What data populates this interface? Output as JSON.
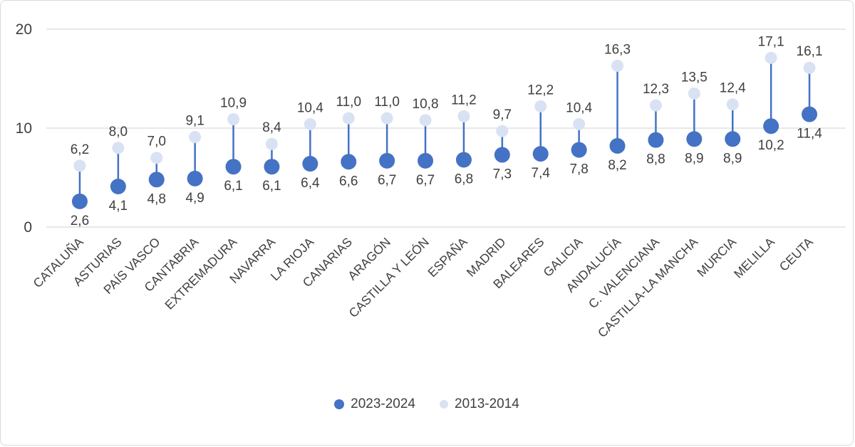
{
  "chart_data": {
    "type": "dumbbell",
    "title": "",
    "categories": [
      "CATALUÑA",
      "ASTURIAS",
      "PAÍS VASCO",
      "CANTABRIA",
      "EXTREMADURA",
      "NAVARRA",
      "LA RIOJA",
      "CANARIAS",
      "ARAGÓN",
      "CASTILLA Y LEÓN",
      "ESPAÑA",
      "MADRID",
      "BALEARES",
      "GALICIA",
      "ANDALUCÍA",
      "C. VALENCIANA",
      "CASTILLA-LA MANCHA",
      "MURCIA",
      "MELILLA",
      "CEUTA"
    ],
    "series": [
      {
        "name": "2023-2024",
        "color": "#4472C4",
        "values": [
          2.6,
          4.1,
          4.8,
          4.9,
          6.1,
          6.1,
          6.4,
          6.6,
          6.7,
          6.7,
          6.8,
          7.3,
          7.4,
          7.8,
          8.2,
          8.8,
          8.9,
          8.9,
          10.2,
          11.4
        ]
      },
      {
        "name": "2013-2014",
        "color": "#D9E2F3",
        "values": [
          6.2,
          8.0,
          7.0,
          9.1,
          10.9,
          8.4,
          10.4,
          11.0,
          11.0,
          10.8,
          11.2,
          9.7,
          12.2,
          10.4,
          16.3,
          12.3,
          13.5,
          12.4,
          17.1,
          16.1
        ]
      }
    ],
    "ylim": [
      0,
      20
    ],
    "yticks": [
      0,
      10,
      20
    ],
    "grid": "horizontal",
    "legend_position": "bottom",
    "label_format": "comma-decimal",
    "data_labels": "both-series"
  },
  "colors": {
    "text": "#404040",
    "gridline": "#d9d9d9",
    "border": "#d9d9d9"
  }
}
